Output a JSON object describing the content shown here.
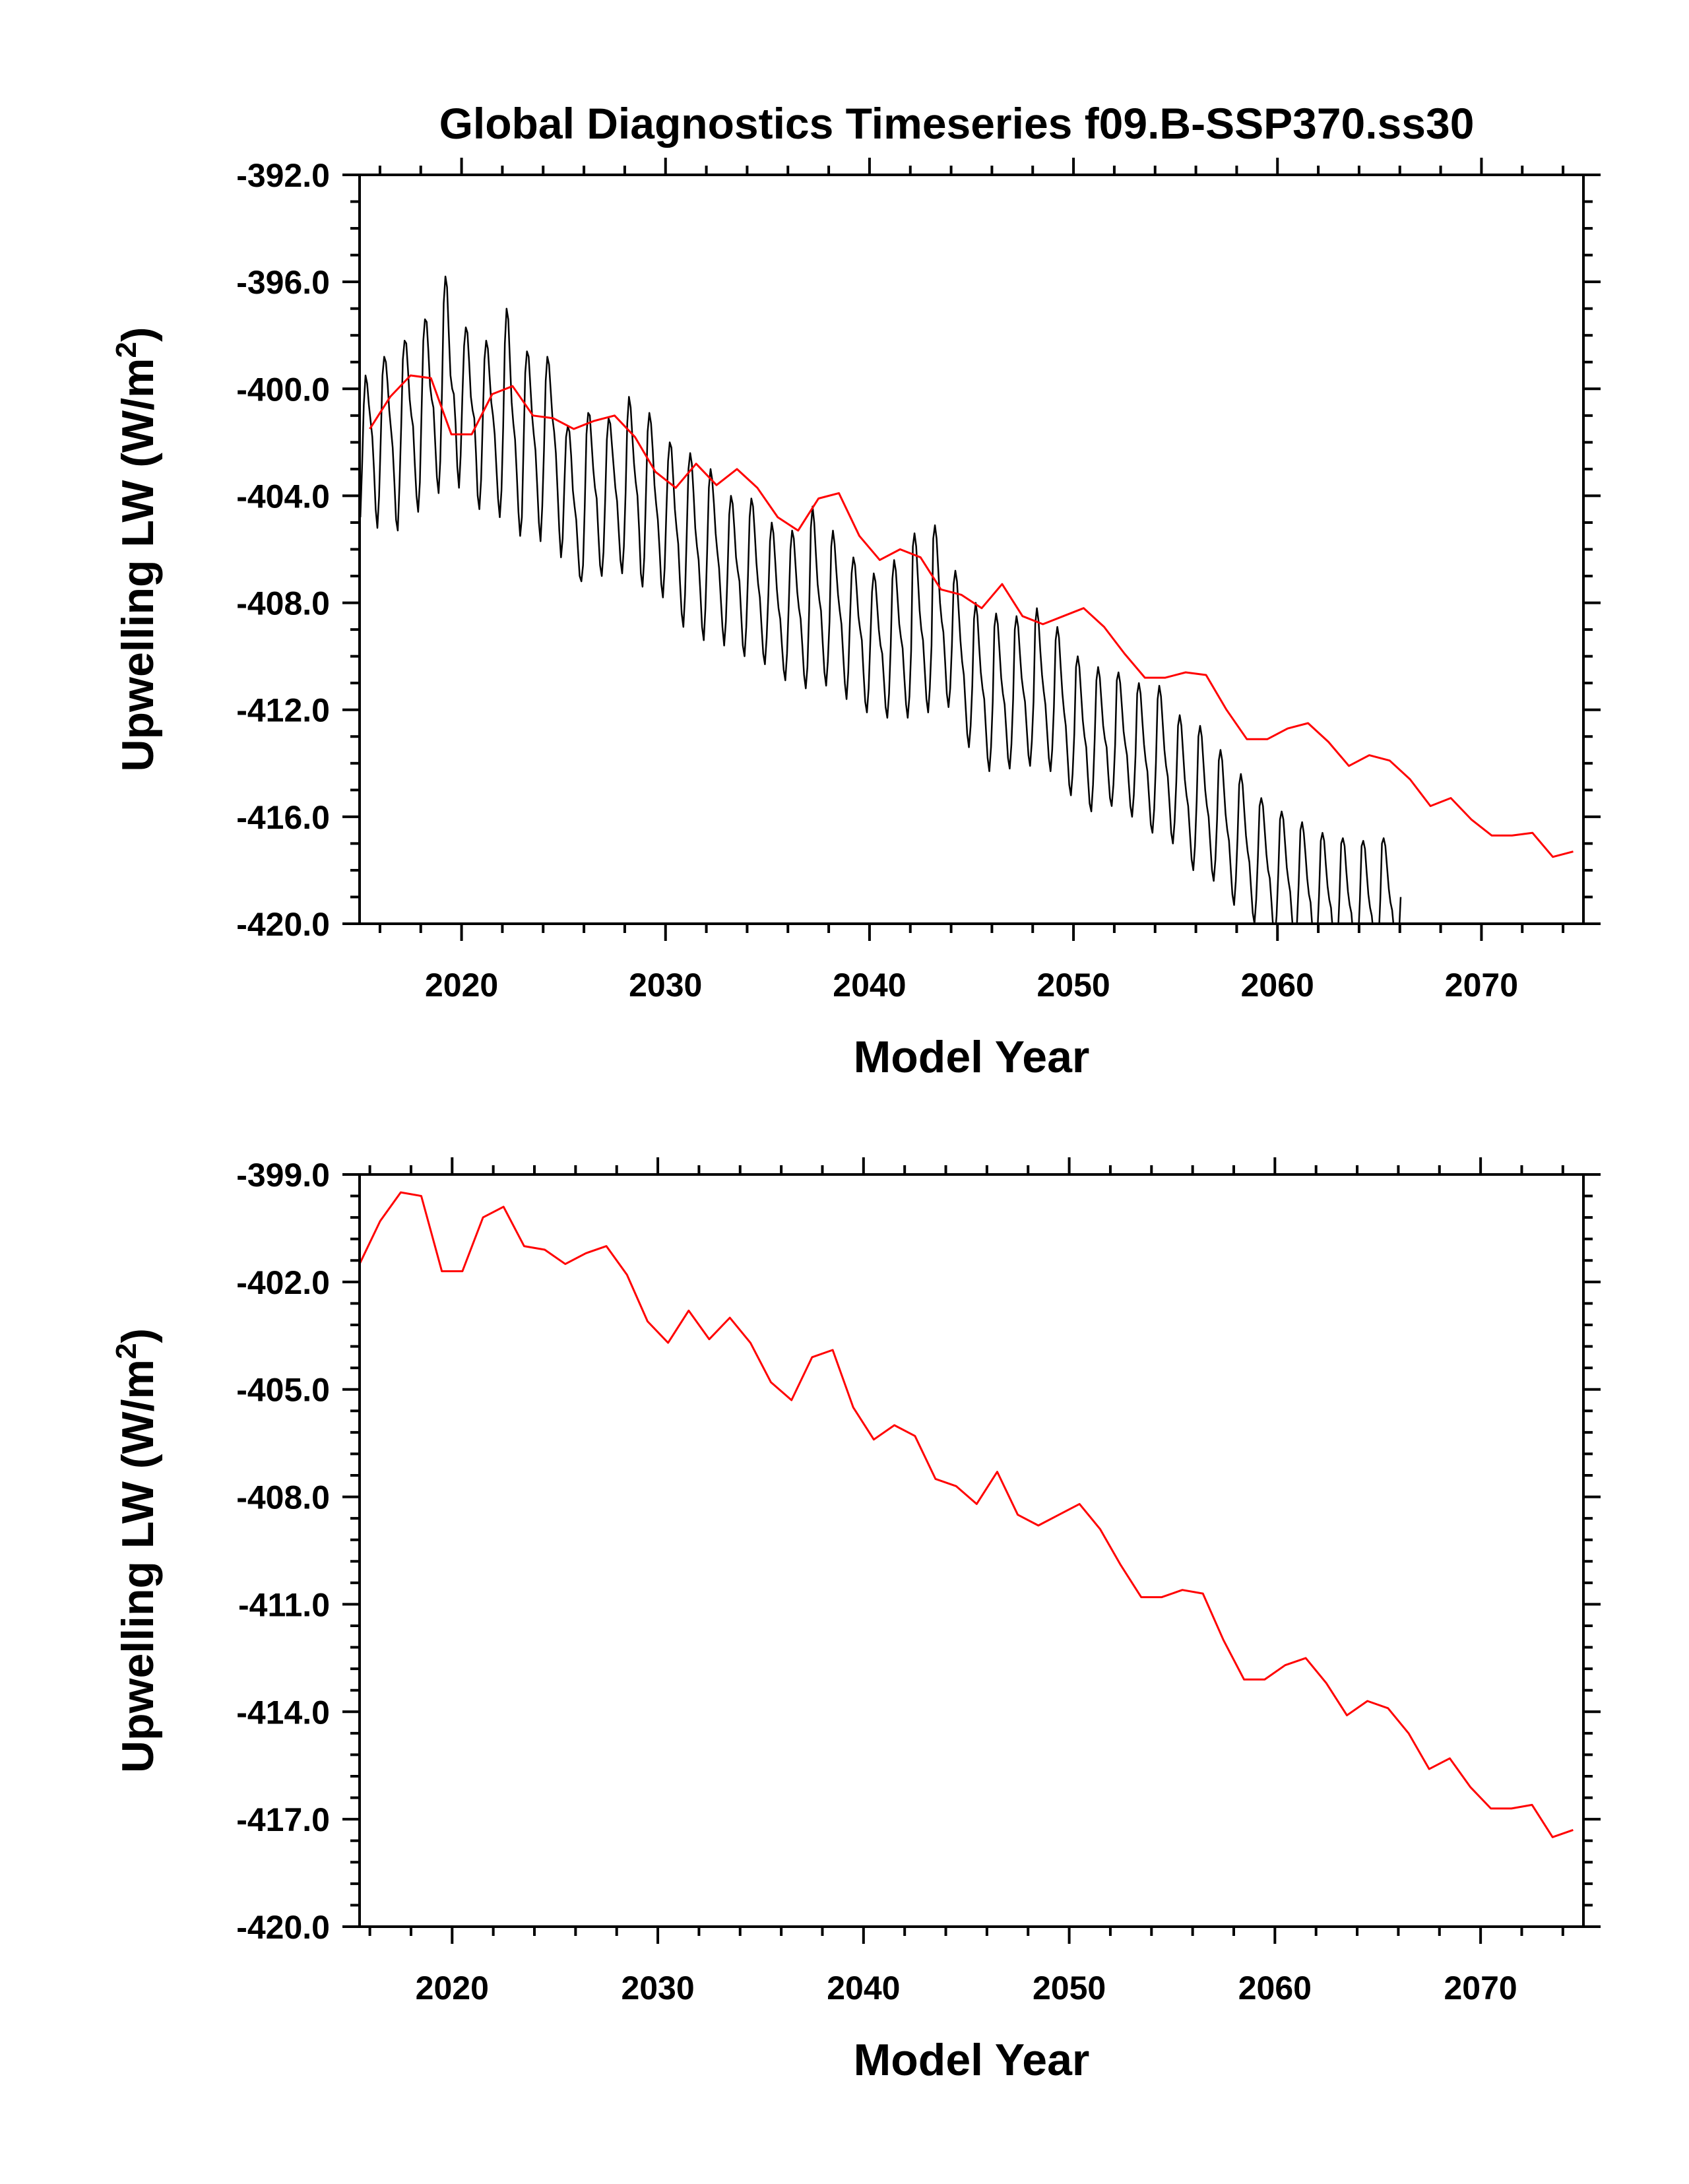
{
  "figure_title": "Global Diagnostics Timeseries f09.B-SSP370.ss30",
  "chart_data": [
    {
      "type": "line",
      "title": "Global Diagnostics Timeseries f09.B-SSP370.ss30",
      "xlabel": "Model Year",
      "ylabel": "Upwelling LW (W/m²)",
      "ylabel_parts": {
        "main": "Upwelling LW (W/m",
        "sup": "2",
        "end": ")"
      },
      "xlim": [
        2015,
        2075
      ],
      "ylim": [
        -420.0,
        -392.0
      ],
      "xticks": [
        2020,
        2030,
        2040,
        2050,
        2060,
        2070
      ],
      "xtick_labels": [
        "2020",
        "2030",
        "2040",
        "2050",
        "2060",
        "2070"
      ],
      "yticks": [
        -420.0,
        -416.0,
        -412.0,
        -408.0,
        -404.0,
        -400.0,
        -396.0,
        -392.0
      ],
      "ytick_labels": [
        "-420.0",
        "-416.0",
        "-412.0",
        "-408.0",
        "-404.0",
        "-400.0",
        "-396.0",
        "-392.0"
      ],
      "grid": false,
      "series": [
        {
          "color": "#000000",
          "kind": "monthly",
          "x_start": 2015.04,
          "x_step": 0.0833333,
          "values": [
            -404.8,
            -402.9,
            -400.6,
            -399.5,
            -399.8,
            -400.6,
            -401.2,
            -401.8,
            -403.0,
            -404.5,
            -405.2,
            -404.0,
            -401.8,
            -399.5,
            -398.8,
            -399.0,
            -399.8,
            -400.8,
            -401.5,
            -402.2,
            -403.5,
            -404.9,
            -405.3,
            -403.6,
            -401.4,
            -398.9,
            -398.2,
            -398.3,
            -399.3,
            -400.4,
            -401.0,
            -401.4,
            -402.8,
            -404.0,
            -404.6,
            -403.5,
            -400.8,
            -398.2,
            -397.4,
            -397.5,
            -398.6,
            -399.9,
            -400.4,
            -400.7,
            -402.0,
            -403.3,
            -403.9,
            -402.7,
            -400.1,
            -396.8,
            -395.8,
            -396.2,
            -397.9,
            -399.5,
            -400.0,
            -400.2,
            -401.3,
            -402.9,
            -403.7,
            -402.5,
            -400.3,
            -398.4,
            -397.7,
            -397.9,
            -399.0,
            -400.3,
            -400.8,
            -401.1,
            -402.4,
            -404.0,
            -404.5,
            -403.4,
            -401.2,
            -398.9,
            -398.2,
            -398.5,
            -399.5,
            -400.5,
            -401.0,
            -401.7,
            -402.9,
            -404.1,
            -404.8,
            -403.8,
            -401.4,
            -398.3,
            -397.0,
            -397.4,
            -399.0,
            -400.5,
            -401.3,
            -401.9,
            -403.2,
            -404.6,
            -405.5,
            -404.8,
            -402.1,
            -399.4,
            -398.6,
            -398.8,
            -399.9,
            -401.0,
            -401.7,
            -402.3,
            -403.6,
            -405.0,
            -405.7,
            -404.4,
            -402.3,
            -399.7,
            -398.8,
            -399.1,
            -400.1,
            -401.1,
            -401.6,
            -402.4,
            -403.8,
            -405.3,
            -406.3,
            -405.6,
            -403.6,
            -401.8,
            -401.4,
            -401.6,
            -402.5,
            -403.8,
            -404.4,
            -404.9,
            -406.0,
            -407.0,
            -407.2,
            -406.6,
            -404.4,
            -401.7,
            -400.9,
            -401.0,
            -402.0,
            -403.0,
            -403.7,
            -404.1,
            -405.4,
            -406.6,
            -407.0,
            -406.1,
            -404.2,
            -401.9,
            -401.1,
            -401.3,
            -402.1,
            -402.9,
            -403.7,
            -404.2,
            -405.3,
            -406.4,
            -406.9,
            -405.9,
            -403.9,
            -401.3,
            -400.3,
            -400.7,
            -401.8,
            -402.8,
            -403.5,
            -404.0,
            -405.3,
            -406.9,
            -407.4,
            -406.3,
            -403.9,
            -401.6,
            -400.9,
            -401.3,
            -402.3,
            -403.6,
            -404.3,
            -404.9,
            -406.0,
            -407.3,
            -407.8,
            -406.7,
            -404.6,
            -402.7,
            -402.0,
            -402.2,
            -403.3,
            -404.5,
            -405.2,
            -405.8,
            -407.2,
            -408.4,
            -408.9,
            -407.7,
            -405.4,
            -403.0,
            -402.4,
            -402.8,
            -403.9,
            -405.2,
            -405.9,
            -406.4,
            -407.6,
            -408.9,
            -409.4,
            -408.2,
            -406.1,
            -403.7,
            -403.0,
            -403.4,
            -404.3,
            -405.4,
            -406.1,
            -406.7,
            -407.8,
            -408.9,
            -409.6,
            -408.7,
            -406.9,
            -404.7,
            -404.0,
            -404.3,
            -405.2,
            -406.3,
            -406.8,
            -407.2,
            -408.4,
            -409.6,
            -410.0,
            -408.9,
            -407.0,
            -404.8,
            -404.1,
            -404.4,
            -405.4,
            -406.5,
            -407.3,
            -407.8,
            -408.9,
            -409.9,
            -410.3,
            -409.3,
            -407.7,
            -405.7,
            -405.0,
            -405.4,
            -406.4,
            -407.5,
            -408.2,
            -408.6,
            -409.6,
            -410.5,
            -410.9,
            -409.9,
            -408.1,
            -406.0,
            -405.3,
            -405.6,
            -406.6,
            -407.6,
            -408.2,
            -408.6,
            -409.6,
            -410.7,
            -411.2,
            -410.4,
            -408.3,
            -405.2,
            -404.4,
            -405.0,
            -406.2,
            -407.3,
            -407.9,
            -408.3,
            -409.5,
            -410.6,
            -411.1,
            -410.2,
            -408.7,
            -405.9,
            -405.3,
            -405.8,
            -406.8,
            -407.7,
            -408.3,
            -408.8,
            -409.9,
            -411.0,
            -411.6,
            -410.6,
            -408.7,
            -406.9,
            -406.3,
            -406.6,
            -407.5,
            -408.5,
            -409.0,
            -409.4,
            -410.6,
            -411.7,
            -412.1,
            -411.2,
            -409.4,
            -407.6,
            -406.9,
            -407.2,
            -408.1,
            -409.0,
            -409.6,
            -409.9,
            -410.9,
            -411.9,
            -412.3,
            -411.4,
            -409.6,
            -407.1,
            -406.4,
            -406.8,
            -407.8,
            -408.8,
            -409.3,
            -409.7,
            -410.8,
            -411.8,
            -412.3,
            -411.5,
            -409.8,
            -405.9,
            -405.4,
            -405.9,
            -407.1,
            -408.3,
            -409.0,
            -409.4,
            -410.5,
            -411.6,
            -412.1,
            -411.2,
            -409.6,
            -405.6,
            -405.1,
            -405.6,
            -406.8,
            -408.0,
            -408.7,
            -409.1,
            -410.2,
            -411.4,
            -411.9,
            -411.2,
            -409.6,
            -407.3,
            -406.8,
            -407.2,
            -408.3,
            -409.4,
            -410.2,
            -410.7,
            -411.8,
            -412.9,
            -413.4,
            -412.6,
            -411.1,
            -408.6,
            -408.0,
            -408.5,
            -409.6,
            -410.6,
            -411.2,
            -411.6,
            -412.7,
            -413.8,
            -414.3,
            -413.4,
            -411.7,
            -408.9,
            -408.4,
            -408.8,
            -409.8,
            -410.8,
            -411.4,
            -411.8,
            -412.8,
            -413.8,
            -414.2,
            -413.3,
            -411.6,
            -409.0,
            -408.5,
            -408.9,
            -409.9,
            -410.8,
            -411.3,
            -411.7,
            -412.7,
            -413.7,
            -414.1,
            -413.2,
            -411.7,
            -408.8,
            -408.2,
            -408.7,
            -409.8,
            -410.7,
            -411.3,
            -411.8,
            -412.8,
            -413.8,
            -414.3,
            -413.5,
            -411.9,
            -409.4,
            -408.9,
            -409.3,
            -410.4,
            -411.4,
            -412.1,
            -412.6,
            -413.7,
            -414.8,
            -415.2,
            -414.4,
            -412.9,
            -410.4,
            -410.0,
            -410.4,
            -411.4,
            -412.4,
            -413.0,
            -413.4,
            -414.5,
            -415.5,
            -415.8,
            -414.8,
            -413.1,
            -410.9,
            -410.4,
            -410.8,
            -411.7,
            -412.6,
            -413.1,
            -413.4,
            -414.4,
            -415.3,
            -415.6,
            -414.8,
            -413.3,
            -410.9,
            -410.6,
            -411.0,
            -411.9,
            -412.8,
            -413.3,
            -413.7,
            -414.7,
            -415.6,
            -416.0,
            -415.2,
            -413.7,
            -411.4,
            -411.0,
            -411.4,
            -412.4,
            -413.3,
            -413.9,
            -414.3,
            -415.3,
            -416.3,
            -416.6,
            -415.7,
            -414.0,
            -411.6,
            -411.1,
            -411.5,
            -412.5,
            -413.5,
            -414.1,
            -414.5,
            -415.5,
            -416.6,
            -417.0,
            -416.2,
            -414.7,
            -412.6,
            -412.2,
            -412.6,
            -413.6,
            -414.6,
            -415.2,
            -415.6,
            -416.6,
            -417.6,
            -418.0,
            -417.1,
            -415.4,
            -413.0,
            -412.6,
            -413.0,
            -414.0,
            -415.0,
            -415.6,
            -416.0,
            -417.0,
            -418.0,
            -418.4,
            -417.6,
            -416.1,
            -413.9,
            -413.5,
            -413.9,
            -414.9,
            -415.9,
            -416.5,
            -416.9,
            -417.9,
            -418.9,
            -419.3,
            -418.4,
            -416.8,
            -414.8,
            -414.4,
            -414.8,
            -415.8,
            -416.7,
            -417.3,
            -417.7,
            -418.7,
            -419.6,
            -420.0,
            -419.1,
            -417.5,
            -415.6,
            -415.3,
            -415.6,
            -416.5,
            -417.4,
            -418.0,
            -418.3,
            -419.2,
            -420.2,
            -420.5,
            -419.7,
            -418.1,
            -416.1,
            -415.8,
            -416.1,
            -417.0,
            -417.9,
            -418.4,
            -418.8,
            -419.7,
            -420.6,
            -420.9,
            -420.0,
            -418.5,
            -416.5,
            -416.2,
            -416.6,
            -417.4,
            -418.3,
            -418.9,
            -419.2,
            -420.1,
            -420.9,
            -421.2,
            -420.4,
            -418.9,
            -416.9,
            -416.6,
            -416.9,
            -417.8,
            -418.6,
            -419.1,
            -419.4,
            -420.2,
            -421.0,
            -421.3,
            -420.5,
            -419.0,
            -417.0,
            -416.8,
            -417.1,
            -418.0,
            -418.8,
            -419.3,
            -419.6,
            -420.4,
            -421.1,
            -421.4,
            -420.6,
            -419.1,
            -417.1,
            -416.9,
            -417.2,
            -418.1,
            -418.9,
            -419.4,
            -419.7,
            -420.4,
            -421.1,
            -421.4,
            -420.6,
            -419.1,
            -417.0,
            -416.8,
            -417.1,
            -417.9,
            -418.7,
            -419.2,
            -419.5,
            -420.2,
            -420.8,
            -421.1,
            -420.4,
            -419.0
          ]
        },
        {
          "color": "#ff0000",
          "kind": "annual",
          "x": [
            2015.5,
            2016.5,
            2017.5,
            2018.5,
            2019.5,
            2020.5,
            2021.5,
            2022.5,
            2023.5,
            2024.5,
            2025.5,
            2026.5,
            2027.5,
            2028.5,
            2029.5,
            2030.5,
            2031.5,
            2032.5,
            2033.5,
            2034.5,
            2035.5,
            2036.5,
            2037.5,
            2038.5,
            2039.5,
            2040.5,
            2041.5,
            2042.5,
            2043.5,
            2044.5,
            2045.5,
            2046.5,
            2047.5,
            2048.5,
            2049.5,
            2050.5,
            2051.5,
            2052.5,
            2053.5,
            2054.5,
            2055.5,
            2056.5,
            2057.5,
            2058.5,
            2059.5,
            2060.5,
            2061.5,
            2062.5,
            2063.5,
            2064.5,
            2065.5,
            2066.5,
            2067.5,
            2068.5,
            2069.5,
            2070.5,
            2071.5,
            2072.5,
            2073.5,
            2074.5
          ],
          "values": [
            -401.5,
            -400.3,
            -399.5,
            -399.6,
            -401.7,
            -401.7,
            -400.2,
            -399.9,
            -401.0,
            -401.1,
            -401.5,
            -401.2,
            -401.0,
            -401.8,
            -403.1,
            -403.7,
            -402.8,
            -403.6,
            -403.0,
            -403.7,
            -404.8,
            -405.3,
            -404.1,
            -403.9,
            -405.5,
            -406.4,
            -406.0,
            -406.3,
            -407.5,
            -407.7,
            -408.2,
            -407.3,
            -408.5,
            -408.8,
            -408.5,
            -408.2,
            -408.9,
            -409.9,
            -410.8,
            -410.8,
            -410.6,
            -410.7,
            -412.0,
            -413.1,
            -413.1,
            -412.7,
            -412.5,
            -413.2,
            -414.1,
            -413.7,
            -413.9,
            -414.6,
            -415.6,
            -415.3,
            -416.1,
            -416.7,
            -416.7,
            -416.6,
            -417.5,
            -417.3
          ]
        }
      ]
    },
    {
      "type": "line",
      "title": "",
      "xlabel": "Model Year",
      "ylabel": "Upwelling LW (W/m²)",
      "ylabel_parts": {
        "main": "Upwelling LW (W/m",
        "sup": "2",
        "end": ")"
      },
      "xlim": [
        2015.5,
        2075
      ],
      "ylim": [
        -420.0,
        -399.0
      ],
      "xticks": [
        2020,
        2030,
        2040,
        2050,
        2060,
        2070
      ],
      "xtick_labels": [
        "2020",
        "2030",
        "2040",
        "2050",
        "2060",
        "2070"
      ],
      "yticks": [
        -420.0,
        -417.0,
        -414.0,
        -411.0,
        -408.0,
        -405.0,
        -402.0,
        -399.0
      ],
      "ytick_labels": [
        "-420.0",
        "-417.0",
        "-414.0",
        "-411.0",
        "-408.0",
        "-405.0",
        "-402.0",
        "-399.0"
      ],
      "grid": false,
      "series": [
        {
          "color": "#ff0000",
          "kind": "annual",
          "x": [
            2015.5,
            2016.5,
            2017.5,
            2018.5,
            2019.5,
            2020.5,
            2021.5,
            2022.5,
            2023.5,
            2024.5,
            2025.5,
            2026.5,
            2027.5,
            2028.5,
            2029.5,
            2030.5,
            2031.5,
            2032.5,
            2033.5,
            2034.5,
            2035.5,
            2036.5,
            2037.5,
            2038.5,
            2039.5,
            2040.5,
            2041.5,
            2042.5,
            2043.5,
            2044.5,
            2045.5,
            2046.5,
            2047.5,
            2048.5,
            2049.5,
            2050.5,
            2051.5,
            2052.5,
            2053.5,
            2054.5,
            2055.5,
            2056.5,
            2057.5,
            2058.5,
            2059.5,
            2060.5,
            2061.5,
            2062.5,
            2063.5,
            2064.5,
            2065.5,
            2066.5,
            2067.5,
            2068.5,
            2069.5,
            2070.5,
            2071.5,
            2072.5,
            2073.5,
            2074.5
          ],
          "values": [
            -401.5,
            -400.3,
            -399.5,
            -399.6,
            -401.7,
            -401.7,
            -400.2,
            -399.9,
            -401.0,
            -401.1,
            -401.5,
            -401.2,
            -401.0,
            -401.8,
            -403.1,
            -403.7,
            -402.8,
            -403.6,
            -403.0,
            -403.7,
            -404.8,
            -405.3,
            -404.1,
            -403.9,
            -405.5,
            -406.4,
            -406.0,
            -406.3,
            -407.5,
            -407.7,
            -408.2,
            -407.3,
            -408.5,
            -408.8,
            -408.5,
            -408.2,
            -408.9,
            -409.9,
            -410.8,
            -410.8,
            -410.6,
            -410.7,
            -412.0,
            -413.1,
            -413.1,
            -412.7,
            -412.5,
            -413.2,
            -414.1,
            -413.7,
            -413.9,
            -414.6,
            -415.6,
            -415.3,
            -416.1,
            -416.7,
            -416.7,
            -416.6,
            -417.5,
            -417.3
          ]
        }
      ]
    }
  ]
}
